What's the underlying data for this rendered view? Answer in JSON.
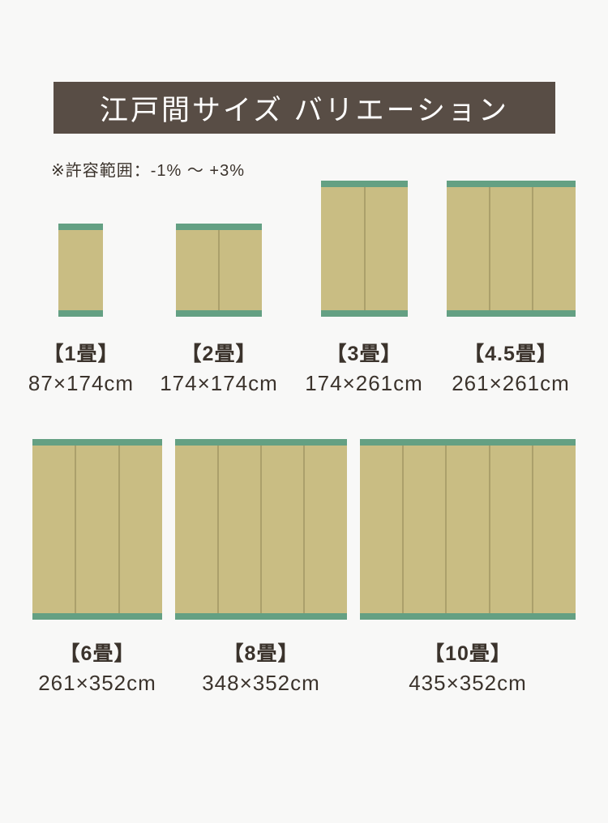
{
  "page": {
    "background_color": "#f8f8f7"
  },
  "header": {
    "title": "江戸間サイズ バリエーション",
    "bg_color": "#584d45",
    "text_color": "#ffffff"
  },
  "note": {
    "text": "※許容範囲：-1% ～ +3%"
  },
  "rug_style": {
    "body_color": "#c9bd83",
    "border_band_color": "#64a083",
    "panel_divider_color": "#aba06b",
    "label_text_color": "#3b332c"
  },
  "rugs": [
    {
      "id": "1jo",
      "label": "【1畳】",
      "size": "87×174cm",
      "panels": 1
    },
    {
      "id": "2jo",
      "label": "【2畳】",
      "size": "174×174cm",
      "panels": 2
    },
    {
      "id": "3jo",
      "label": "【3畳】",
      "size": "174×261cm",
      "panels": 2
    },
    {
      "id": "4_5jo",
      "label": "【4.5畳】",
      "size": "261×261cm",
      "panels": 3
    },
    {
      "id": "6jo",
      "label": "【6畳】",
      "size": "261×352cm",
      "panels": 3
    },
    {
      "id": "8jo",
      "label": "【8畳】",
      "size": "348×352cm",
      "panels": 4
    },
    {
      "id": "10jo",
      "label": "【10畳】",
      "size": "435×352cm",
      "panels": 5
    }
  ]
}
